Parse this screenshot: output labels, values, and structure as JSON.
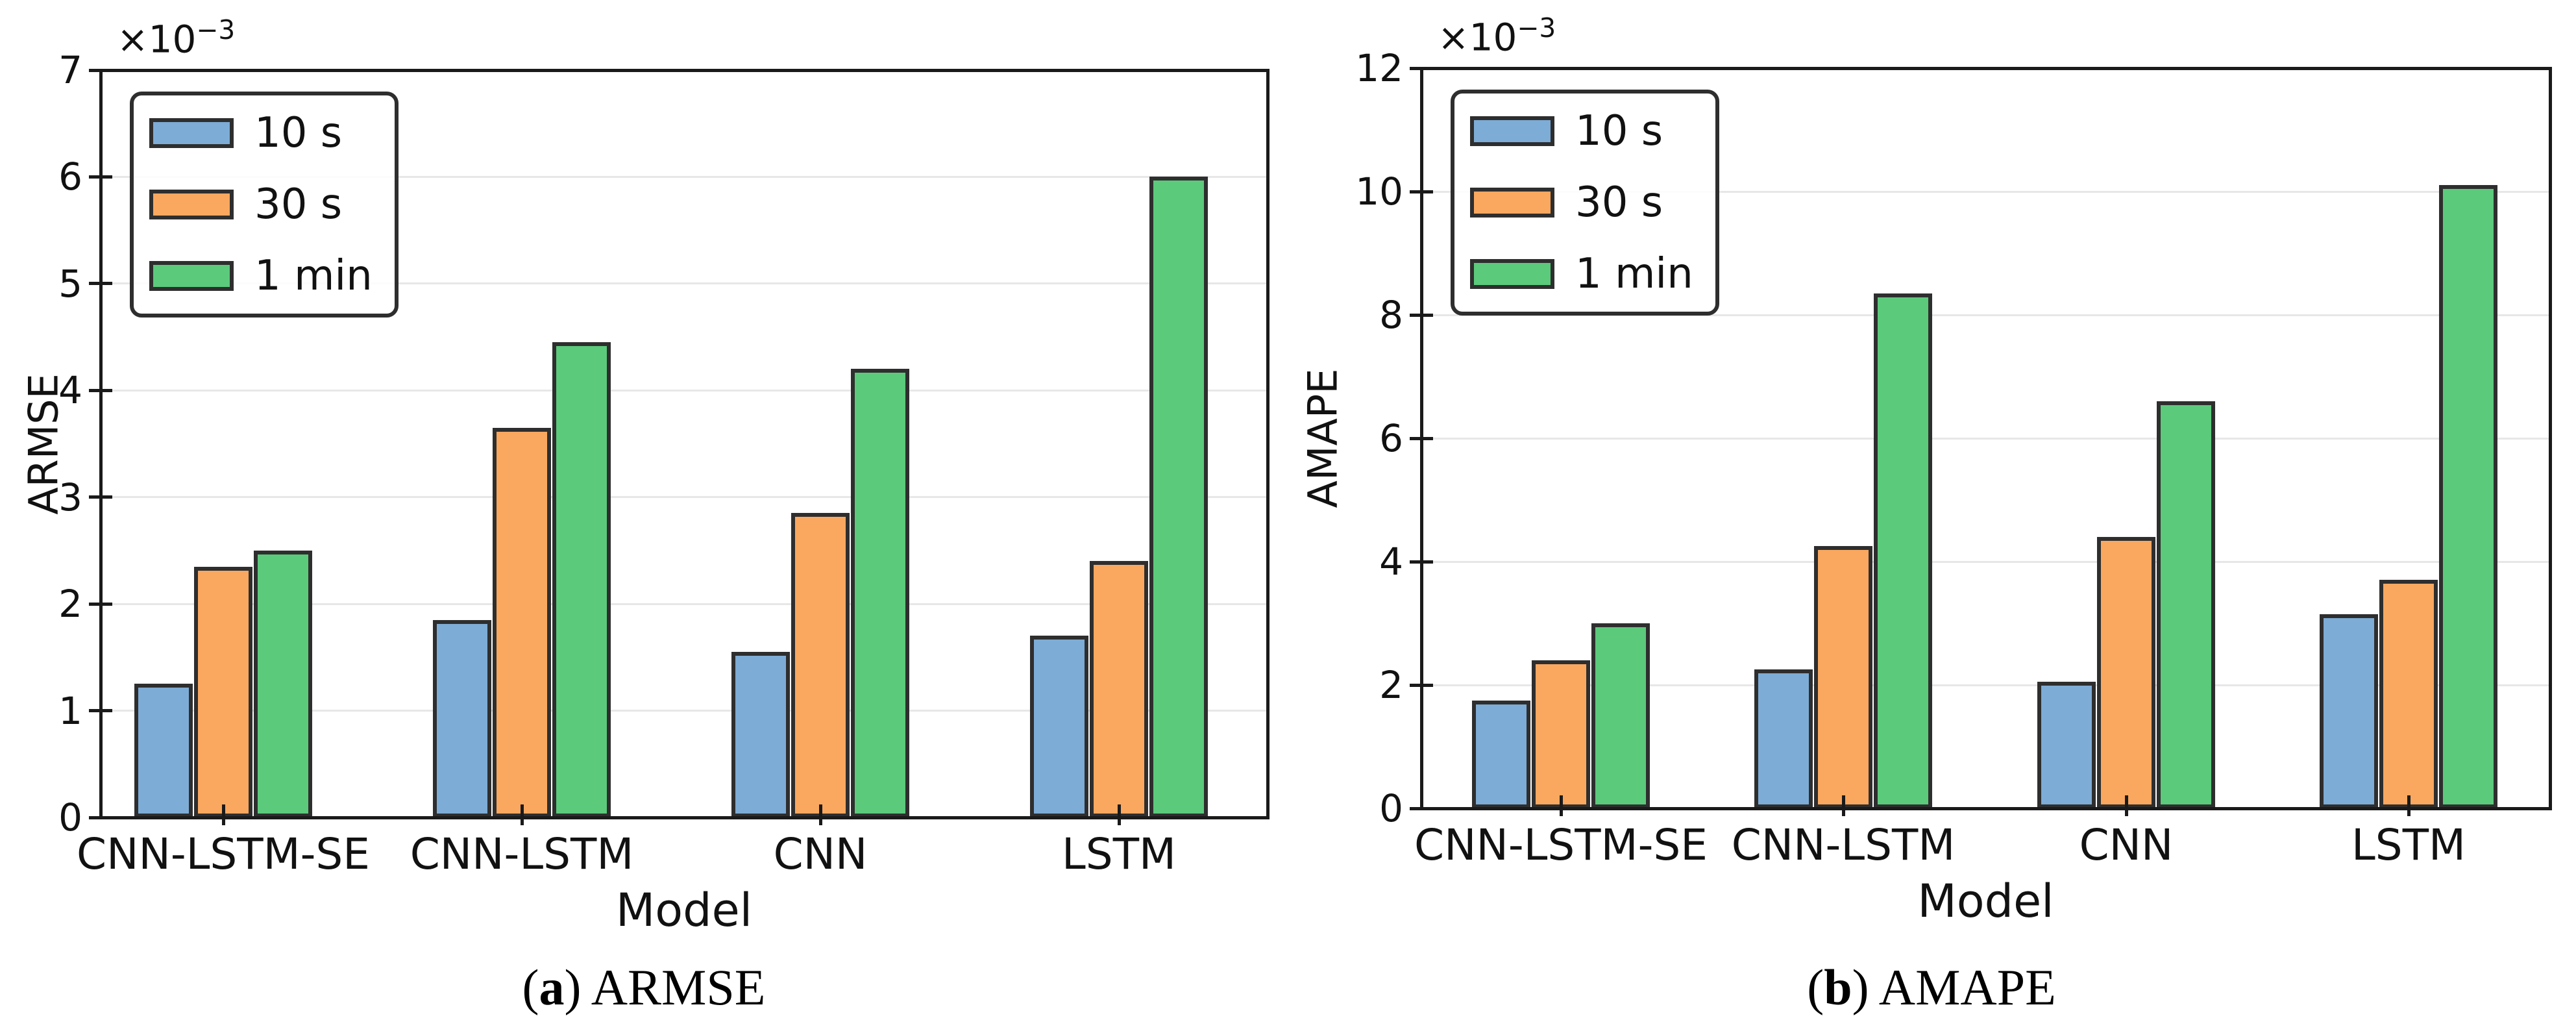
{
  "figure": {
    "background": "#ffffff"
  },
  "colors": {
    "bar_edge": "#2e2e2e",
    "axis": "#1a1a1a",
    "grid": "#e7e7e7",
    "text": "#111111"
  },
  "legend": {
    "items": [
      {
        "label": "10 s",
        "color": "#7DACD6"
      },
      {
        "label": "30 s",
        "color": "#FAA85F"
      },
      {
        "label": "1 min",
        "color": "#5BCA7B"
      }
    ]
  },
  "captions": [
    {
      "open": "(",
      "letter": "a",
      "rest": ") ARMSE"
    },
    {
      "open": "(",
      "letter": "b",
      "rest": ") AMAPE"
    }
  ],
  "chart_data": [
    {
      "type": "bar",
      "title": "(a) ARMSE",
      "ylabel": "ARMSE",
      "xlabel": "Model",
      "y_offset_base": "×10",
      "y_offset_exp": "−3",
      "categories": [
        "CNN-LSTM-SE",
        "CNN-LSTM",
        "CNN",
        "LSTM"
      ],
      "series": [
        {
          "name": "10 s",
          "values": [
            1.25,
            1.85,
            1.55,
            1.7
          ]
        },
        {
          "name": "30 s",
          "values": [
            2.35,
            3.65,
            2.85,
            2.4
          ]
        },
        {
          "name": "1 min",
          "values": [
            2.5,
            4.45,
            4.2,
            6.0
          ]
        }
      ],
      "ylim": [
        0,
        7
      ],
      "yticks": [
        0,
        1,
        2,
        3,
        4,
        5,
        6,
        7
      ],
      "grid": "horizontal",
      "legend_position": "upper left"
    },
    {
      "type": "bar",
      "title": "(b) AMAPE",
      "ylabel": "AMAPE",
      "xlabel": "Model",
      "y_offset_base": "×10",
      "y_offset_exp": "−3",
      "categories": [
        "CNN-LSTM-SE",
        "CNN-LSTM",
        "CNN",
        "LSTM"
      ],
      "series": [
        {
          "name": "10 s",
          "values": [
            1.75,
            2.25,
            2.05,
            3.15
          ]
        },
        {
          "name": "30 s",
          "values": [
            2.4,
            4.25,
            4.4,
            3.7
          ]
        },
        {
          "name": "1 min",
          "values": [
            3.0,
            8.35,
            6.6,
            10.1
          ]
        }
      ],
      "ylim": [
        0,
        12
      ],
      "yticks": [
        0,
        2,
        4,
        6,
        8,
        10,
        12
      ],
      "grid": "horizontal",
      "legend_position": "upper left"
    }
  ]
}
